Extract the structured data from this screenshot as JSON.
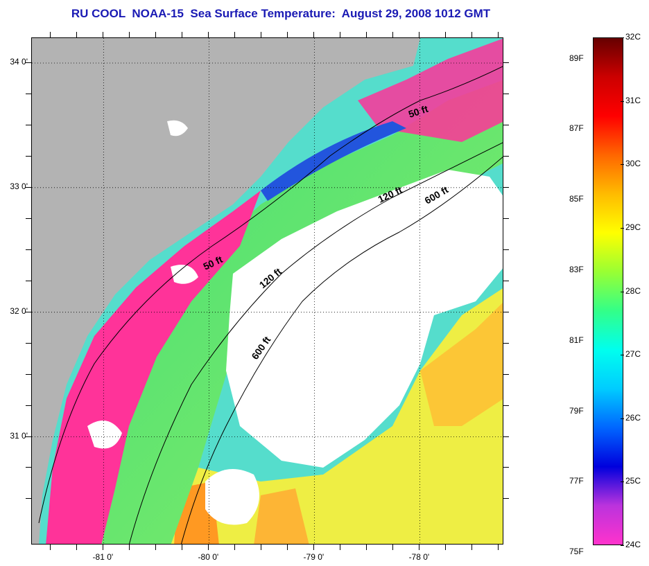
{
  "title": "RU COOL  NOAA-15  Sea Surface Temperature:  August 29, 2008 1012 GMT",
  "map": {
    "lat_ticks": [
      {
        "label": "34 0'",
        "value": 34.0
      },
      {
        "label": "33 0'",
        "value": 33.0
      },
      {
        "label": "32 0'",
        "value": 32.0
      },
      {
        "label": "31 0'",
        "value": 31.0
      }
    ],
    "lon_ticks": [
      {
        "label": "-81 0'",
        "value": -81.0
      },
      {
        "label": "-80 0'",
        "value": -80.0
      },
      {
        "label": "-79 0'",
        "value": -79.0
      },
      {
        "label": "-78 0'",
        "value": -78.0
      }
    ],
    "lat_range": [
      30.13,
      34.2
    ],
    "lon_range": [
      -81.68,
      -77.2
    ],
    "isobath_labels": [
      {
        "text": "50 ft",
        "rotation": -18
      },
      {
        "text": "120 ft",
        "rotation": -25
      },
      {
        "text": "600 ft",
        "rotation": -30
      },
      {
        "text": "50 ft",
        "rotation": -25
      },
      {
        "text": "120 ft",
        "rotation": -40
      },
      {
        "text": "600 ft",
        "rotation": -55
      }
    ],
    "colors": {
      "land": "#b3b3b3",
      "cloud": "#ffffff",
      "cold_pink": "#ff3399",
      "cyan": "#33ddee",
      "green": "#88ee66",
      "yellow": "#eeee33",
      "orange": "#ff9922",
      "blue": "#2255dd",
      "contour": "#000000"
    }
  },
  "colorbar": {
    "celsius_labels": [
      "32C",
      "31C",
      "30C",
      "29C",
      "28C",
      "27C",
      "26C",
      "25C",
      "24C"
    ],
    "fahrenheit_labels": [
      "89F",
      "87F",
      "85F",
      "83F",
      "81F",
      "79F",
      "77F",
      "75F"
    ],
    "range_c": [
      24,
      32
    ],
    "stops": [
      "#ff33cc",
      "#bb33dd",
      "#0000dd",
      "#0066ff",
      "#00ccff",
      "#00ffee",
      "#33ff88",
      "#99ff33",
      "#ffff00",
      "#ffbb00",
      "#ff6600",
      "#ff0000",
      "#cc0000",
      "#660000"
    ]
  }
}
